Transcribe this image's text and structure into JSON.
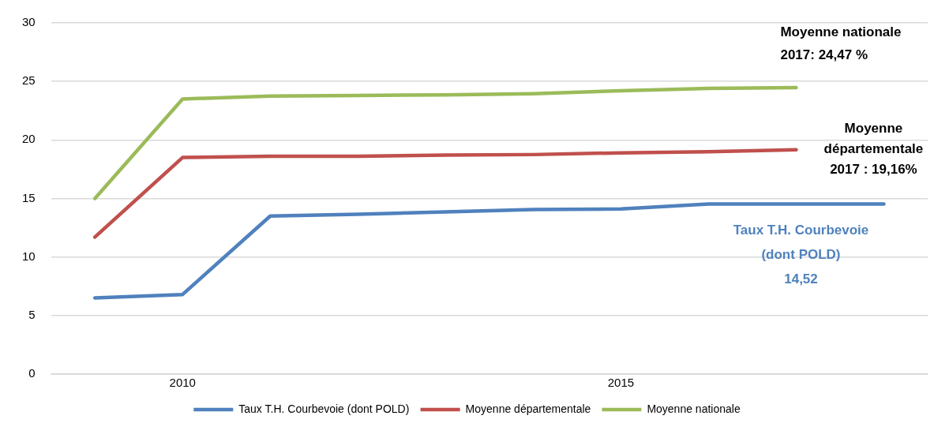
{
  "chart_data": {
    "type": "line",
    "xlim": [
      2008.5,
      2018.5
    ],
    "xticks": [
      2010,
      2015
    ],
    "ylim": [
      0,
      30
    ],
    "yticks": [
      0,
      5,
      10,
      15,
      20,
      25,
      30
    ],
    "grid": "y",
    "legend": "bottom",
    "line_style": "solid",
    "marker": "none",
    "series": [
      {
        "name": "Taux T.H. Courbevoie (dont POLD)",
        "color": "#4f81bd",
        "x": [
          2009,
          2010,
          2011,
          2012,
          2013,
          2014,
          2015,
          2016,
          2017,
          2018
        ],
        "values": [
          6.5,
          6.8,
          13.5,
          13.65,
          13.85,
          14.05,
          14.1,
          14.52,
          14.52,
          14.52
        ]
      },
      {
        "name": "Moyenne départementale",
        "color": "#c0504d",
        "x": [
          2009,
          2010,
          2011,
          2012,
          2013,
          2014,
          2015,
          2016,
          2017
        ],
        "values": [
          11.7,
          18.5,
          18.6,
          18.6,
          18.7,
          18.75,
          18.9,
          19.0,
          19.16
        ]
      },
      {
        "name": "Moyenne nationale",
        "color": "#9bbb59",
        "x": [
          2009,
          2010,
          2011,
          2012,
          2013,
          2014,
          2015,
          2016,
          2017
        ],
        "values": [
          15.0,
          23.5,
          23.75,
          23.8,
          23.85,
          23.95,
          24.2,
          24.4,
          24.47
        ]
      }
    ],
    "annotations": [
      "Moyenne nationale\n2017: 24,47 %",
      "Moyenne\ndépartementale\n2017 : 19,16%",
      "Taux T.H. Courbevoie\n(dont POLD)\n14,52"
    ]
  }
}
